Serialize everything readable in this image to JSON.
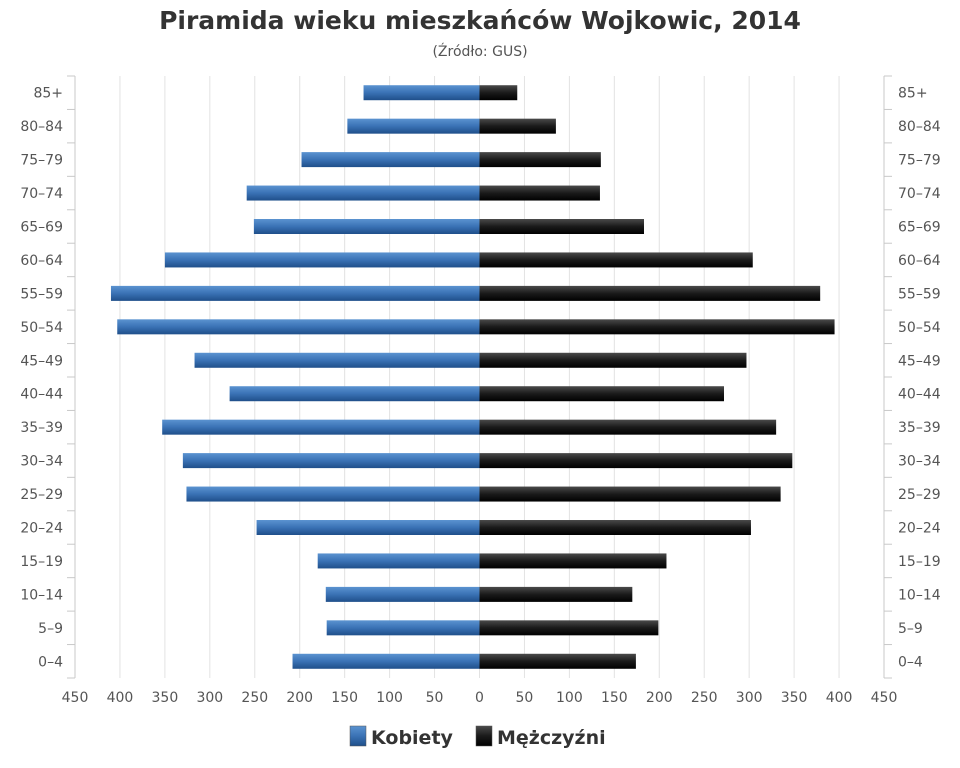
{
  "chart_data": {
    "type": "bar",
    "orientation": "horizontal-population-pyramid",
    "title": "Piramida wieku mieszkańców Wojkowic, 2014",
    "subtitle": "(Źródło: GUS)",
    "categories": [
      "85+",
      "80–84",
      "75–79",
      "70–74",
      "65–69",
      "60–64",
      "55–59",
      "50–54",
      "45–49",
      "40–44",
      "35–39",
      "30–34",
      "25–29",
      "20–24",
      "15–19",
      "10–14",
      "5–9",
      "0–4"
    ],
    "series": [
      {
        "name": "Kobiety",
        "color": "#3a72b5",
        "values": [
          129,
          147,
          198,
          259,
          251,
          350,
          410,
          403,
          317,
          278,
          353,
          330,
          326,
          248,
          180,
          171,
          170,
          208
        ]
      },
      {
        "name": "Mężczyźni",
        "color": "#1a1a1a",
        "values": [
          42,
          85,
          135,
          134,
          183,
          304,
          379,
          395,
          297,
          272,
          330,
          348,
          335,
          302,
          208,
          170,
          199,
          174
        ]
      }
    ],
    "x_ticks": [
      "450",
      "400",
      "350",
      "300",
      "250",
      "200",
      "150",
      "100",
      "50",
      "0",
      "50",
      "100",
      "150",
      "200",
      "250",
      "300",
      "350",
      "400",
      "450"
    ],
    "xlim": [
      -450,
      450
    ],
    "grid": true,
    "legend_position": "bottom-center"
  }
}
